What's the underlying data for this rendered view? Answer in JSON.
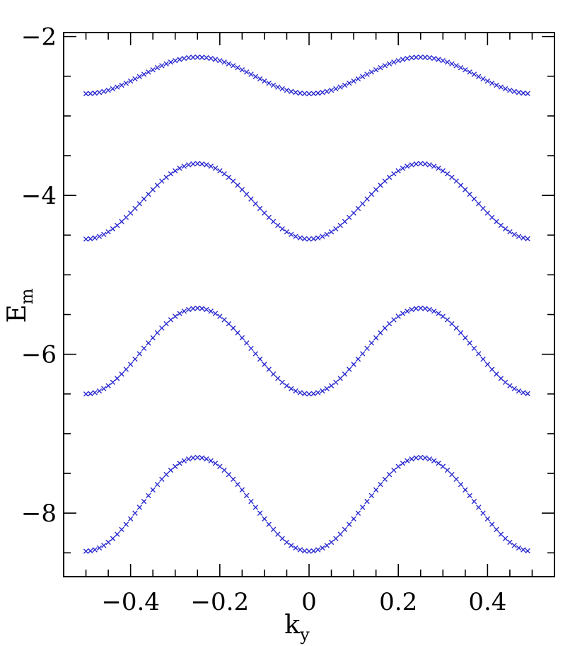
{
  "chart_data": {
    "type": "scatter",
    "title": "",
    "xlabel": "k",
    "xlabel_subscript": "y",
    "ylabel": "E",
    "ylabel_subscript": "m",
    "xlim": [
      -0.55,
      0.55
    ],
    "ylim": [
      -8.8,
      -1.95
    ],
    "x_ticks": [
      -0.4,
      -0.2,
      0,
      0.2,
      0.4
    ],
    "x_tick_labels": [
      "−0.4",
      "−0.2",
      "0",
      "0.2",
      "0.4"
    ],
    "y_ticks": [
      -8,
      -6,
      -4,
      -2
    ],
    "y_tick_labels": [
      "−8",
      "−6",
      "−4",
      "−2"
    ],
    "x_minor_step": 0.05,
    "y_minor_step": 0.5,
    "marker": "x",
    "color": "#2a2ad0",
    "grid": false,
    "x_range": [
      -0.5,
      0.49
    ],
    "x_step": 0.01,
    "series": [
      {
        "x": [
          -0.5,
          -0.25,
          0,
          0.25,
          0.49
        ],
        "y": [
          -2.72,
          -2.26,
          -2.72,
          -2.26,
          -2.72
        ],
        "min": -2.72,
        "max": -2.26
      },
      {
        "x": [
          -0.5,
          -0.25,
          0,
          0.25,
          0.49
        ],
        "y": [
          -4.55,
          -3.6,
          -4.55,
          -3.6,
          -4.55
        ],
        "min": -4.55,
        "max": -3.6
      },
      {
        "x": [
          -0.5,
          -0.25,
          0,
          0.25,
          0.49
        ],
        "y": [
          -6.5,
          -5.42,
          -6.5,
          -5.42,
          -6.5
        ],
        "min": -6.5,
        "max": -5.42
      },
      {
        "x": [
          -0.5,
          -0.25,
          0,
          0.25,
          0.49
        ],
        "y": [
          -8.48,
          -7.3,
          -8.48,
          -7.3,
          -8.48
        ],
        "min": -8.48,
        "max": -7.3
      }
    ]
  }
}
